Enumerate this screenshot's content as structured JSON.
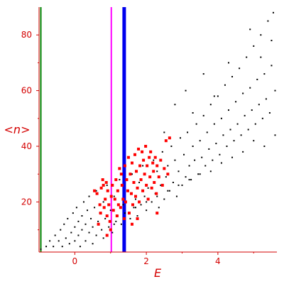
{
  "chart_data": {
    "type": "scatter",
    "xlabel": "E",
    "ylabel": "<n>",
    "xlim": [
      -1.0,
      5.65
    ],
    "ylim": [
      2,
      90
    ],
    "x_ticks": [
      "0",
      "2",
      "4"
    ],
    "y_ticks": [
      "20",
      "40",
      "60",
      "80"
    ],
    "vertical_lines": [
      {
        "x": -0.95,
        "color": "#008000"
      },
      {
        "x": 1.02,
        "color": "#ff00ff"
      },
      {
        "x": 1.38,
        "color": "#0000ee"
      }
    ],
    "series": [
      {
        "color": "#000000",
        "points": [
          [
            -0.95,
            3
          ],
          [
            -0.8,
            4
          ],
          [
            -0.7,
            6
          ],
          [
            -0.6,
            4
          ],
          [
            -0.55,
            8
          ],
          [
            -0.45,
            6
          ],
          [
            -0.4,
            10
          ],
          [
            -0.35,
            4
          ],
          [
            -0.3,
            12
          ],
          [
            -0.25,
            7
          ],
          [
            -0.2,
            14
          ],
          [
            -0.15,
            5
          ],
          [
            -0.1,
            9
          ],
          [
            -0.05,
            16
          ],
          [
            0.0,
            6
          ],
          [
            0.0,
            11
          ],
          [
            0.05,
            18
          ],
          [
            0.1,
            8
          ],
          [
            0.1,
            13
          ],
          [
            0.15,
            4
          ],
          [
            0.2,
            10
          ],
          [
            0.2,
            15
          ],
          [
            0.25,
            20
          ],
          [
            0.3,
            6
          ],
          [
            0.3,
            12
          ],
          [
            0.35,
            17
          ],
          [
            0.4,
            9
          ],
          [
            0.4,
            22
          ],
          [
            0.45,
            14
          ],
          [
            0.5,
            5
          ],
          [
            0.5,
            11
          ],
          [
            0.55,
            18
          ],
          [
            0.6,
            8
          ],
          [
            0.6,
            24
          ],
          [
            0.65,
            13
          ],
          [
            0.7,
            16
          ],
          [
            0.75,
            10
          ],
          [
            0.8,
            20
          ],
          [
            0.8,
            7
          ],
          [
            0.85,
            14
          ],
          [
            0.9,
            26
          ],
          [
            0.95,
            11
          ],
          [
            1.0,
            17
          ],
          [
            1.05,
            9
          ],
          [
            1.1,
            22
          ],
          [
            1.15,
            13
          ],
          [
            1.2,
            15
          ],
          [
            1.25,
            28
          ],
          [
            1.3,
            12
          ],
          [
            1.35,
            19
          ],
          [
            1.4,
            16
          ],
          [
            1.5,
            24
          ],
          [
            1.55,
            14
          ],
          [
            1.6,
            30
          ],
          [
            1.65,
            18
          ],
          [
            1.7,
            21
          ],
          [
            1.75,
            15
          ],
          [
            1.8,
            27
          ],
          [
            1.85,
            19
          ],
          [
            1.9,
            33
          ],
          [
            1.95,
            22
          ],
          [
            2.0,
            17
          ],
          [
            2.05,
            25
          ],
          [
            2.1,
            29
          ],
          [
            2.15,
            20
          ],
          [
            2.2,
            35
          ],
          [
            2.25,
            23
          ],
          [
            2.3,
            31
          ],
          [
            2.35,
            18
          ],
          [
            2.4,
            26
          ],
          [
            2.45,
            38
          ],
          [
            2.5,
            21
          ],
          [
            2.55,
            29
          ],
          [
            2.6,
            33
          ],
          [
            2.65,
            24
          ],
          [
            2.7,
            40
          ],
          [
            2.75,
            27
          ],
          [
            2.8,
            35
          ],
          [
            2.85,
            22
          ],
          [
            2.9,
            31
          ],
          [
            2.95,
            43
          ],
          [
            3.0,
            26
          ],
          [
            3.05,
            37
          ],
          [
            3.1,
            29
          ],
          [
            3.15,
            45
          ],
          [
            3.2,
            33
          ],
          [
            3.25,
            28
          ],
          [
            3.3,
            40
          ],
          [
            3.35,
            35
          ],
          [
            3.4,
            48
          ],
          [
            3.45,
            30
          ],
          [
            3.5,
            42
          ],
          [
            3.55,
            36
          ],
          [
            3.6,
            51
          ],
          [
            3.65,
            33
          ],
          [
            3.7,
            45
          ],
          [
            3.75,
            39
          ],
          [
            3.8,
            55
          ],
          [
            3.85,
            35
          ],
          [
            3.9,
            48
          ],
          [
            3.95,
            41
          ],
          [
            4.0,
            58
          ],
          [
            4.05,
            37
          ],
          [
            4.1,
            50
          ],
          [
            4.15,
            44
          ],
          [
            4.2,
            62
          ],
          [
            4.25,
            40
          ],
          [
            4.3,
            53
          ],
          [
            4.35,
            46
          ],
          [
            4.4,
            65
          ],
          [
            4.45,
            42
          ],
          [
            4.5,
            56
          ],
          [
            4.55,
            48
          ],
          [
            4.6,
            68
          ],
          [
            4.65,
            44
          ],
          [
            4.7,
            59
          ],
          [
            4.75,
            51
          ],
          [
            4.8,
            72
          ],
          [
            4.85,
            46
          ],
          [
            4.9,
            61
          ],
          [
            4.95,
            53
          ],
          [
            5.0,
            76
          ],
          [
            5.05,
            48
          ],
          [
            5.1,
            64
          ],
          [
            5.15,
            55
          ],
          [
            5.2,
            80
          ],
          [
            5.25,
            50
          ],
          [
            5.3,
            66
          ],
          [
            5.35,
            57
          ],
          [
            5.4,
            85
          ],
          [
            5.45,
            52
          ],
          [
            5.5,
            69
          ],
          [
            5.55,
            88
          ],
          [
            5.6,
            60
          ],
          [
            5.6,
            44
          ],
          [
            5.3,
            40
          ],
          [
            5.0,
            42
          ],
          [
            4.7,
            38
          ],
          [
            4.4,
            36
          ],
          [
            4.1,
            34
          ],
          [
            3.8,
            31
          ],
          [
            3.5,
            30
          ],
          [
            3.2,
            28
          ],
          [
            2.9,
            26
          ],
          [
            2.6,
            24
          ],
          [
            2.3,
            22
          ],
          [
            2.0,
            20
          ],
          [
            1.7,
            18
          ],
          [
            1.4,
            14
          ],
          [
            1.1,
            12
          ],
          [
            3.1,
            60
          ],
          [
            2.8,
            55
          ],
          [
            3.6,
            66
          ],
          [
            4.3,
            70
          ],
          [
            4.9,
            82
          ],
          [
            5.2,
            72
          ],
          [
            5.5,
            78
          ],
          [
            2.5,
            45
          ],
          [
            3.3,
            52
          ],
          [
            3.9,
            58
          ]
        ]
      },
      {
        "color": "#ff0000",
        "points": [
          [
            0.55,
            24
          ],
          [
            0.62,
            23
          ],
          [
            0.66,
            12
          ],
          [
            0.7,
            19
          ],
          [
            0.72,
            16
          ],
          [
            0.74,
            25
          ],
          [
            0.78,
            28
          ],
          [
            0.8,
            26
          ],
          [
            0.82,
            18
          ],
          [
            0.85,
            21
          ],
          [
            0.88,
            27
          ],
          [
            0.9,
            15
          ],
          [
            0.92,
            24
          ],
          [
            0.95,
            19
          ],
          [
            0.98,
            13
          ],
          [
            1.02,
            22
          ],
          [
            1.05,
            26
          ],
          [
            1.08,
            17
          ],
          [
            1.12,
            21
          ],
          [
            1.15,
            28
          ],
          [
            1.18,
            15
          ],
          [
            1.2,
            24
          ],
          [
            1.22,
            19
          ],
          [
            1.25,
            32
          ],
          [
            1.28,
            18
          ],
          [
            1.3,
            30
          ],
          [
            1.32,
            26
          ],
          [
            1.35,
            21
          ],
          [
            1.38,
            14
          ],
          [
            1.4,
            33
          ],
          [
            1.42,
            20
          ],
          [
            1.45,
            28
          ],
          [
            1.48,
            24
          ],
          [
            1.5,
            36
          ],
          [
            1.52,
            16
          ],
          [
            1.55,
            30
          ],
          [
            1.58,
            23
          ],
          [
            1.6,
            34
          ],
          [
            1.62,
            19
          ],
          [
            1.65,
            27
          ],
          [
            1.68,
            37
          ],
          [
            1.7,
            22
          ],
          [
            1.72,
            31
          ],
          [
            1.75,
            25
          ],
          [
            1.78,
            39
          ],
          [
            1.8,
            20
          ],
          [
            1.82,
            33
          ],
          [
            1.85,
            28
          ],
          [
            1.88,
            38
          ],
          [
            1.9,
            24
          ],
          [
            1.92,
            35
          ],
          [
            1.95,
            30
          ],
          [
            1.98,
            40
          ],
          [
            2.0,
            26
          ],
          [
            2.02,
            33
          ],
          [
            2.05,
            21
          ],
          [
            2.08,
            36
          ],
          [
            2.1,
            29
          ],
          [
            2.12,
            38
          ],
          [
            2.15,
            25
          ],
          [
            2.18,
            34
          ],
          [
            2.2,
            31
          ],
          [
            2.22,
            27
          ],
          [
            2.25,
            36
          ],
          [
            2.28,
            23
          ],
          [
            2.3,
            33
          ],
          [
            2.35,
            29
          ],
          [
            2.4,
            35
          ],
          [
            2.45,
            26
          ],
          [
            2.5,
            32
          ],
          [
            2.55,
            42
          ],
          [
            2.6,
            30
          ],
          [
            2.65,
            43
          ],
          [
            1.0,
            10
          ],
          [
            1.6,
            12
          ],
          [
            2.3,
            16
          ],
          [
            0.9,
            8
          ],
          [
            1.75,
            14
          ]
        ]
      }
    ]
  }
}
